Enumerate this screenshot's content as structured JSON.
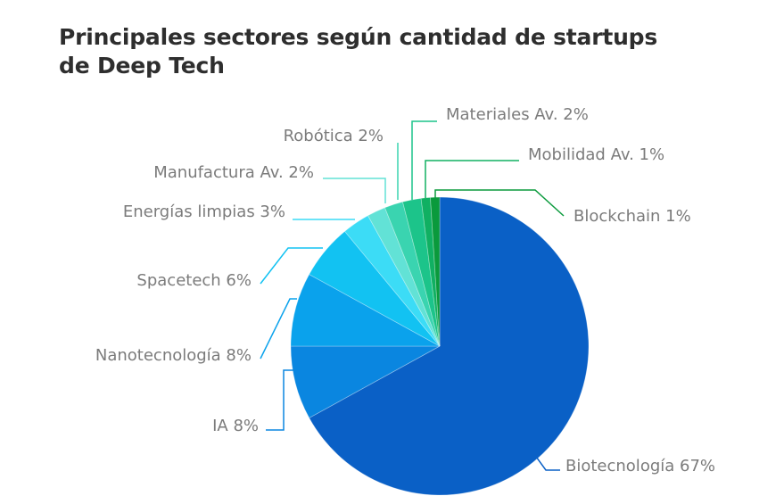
{
  "chart_data": {
    "type": "pie",
    "title_lines": [
      "Principales sectores según cantidad de startups",
      "de Deep Tech"
    ],
    "start": "top",
    "direction": "clockwise",
    "slices": [
      {
        "label": "Biotecnología",
        "value": 67,
        "text": "Biotecnología 67%",
        "color": "#0a60c6"
      },
      {
        "label": "IA",
        "value": 8,
        "text": "IA 8%",
        "color": "#0a86e0"
      },
      {
        "label": "Nanotecnología",
        "value": 8,
        "text": "Nanotecnología 8%",
        "color": "#0aa2ec"
      },
      {
        "label": "Spacetech",
        "value": 6,
        "text": "Spacetech 6%",
        "color": "#12c2f2"
      },
      {
        "label": "Energías limpias",
        "value": 3,
        "text": "Energías limpias 3%",
        "color": "#3cdcf6"
      },
      {
        "label": "Manufactura Av.",
        "value": 2,
        "text": "Manufactura Av. 2%",
        "color": "#62e2d6"
      },
      {
        "label": "Robótica",
        "value": 2,
        "text": "Robótica 2%",
        "color": "#3ad4b0"
      },
      {
        "label": "Materiales Av.",
        "value": 2,
        "text": "Materiales Av. 2%",
        "color": "#1cc48a"
      },
      {
        "label": "Mobilidad Av.",
        "value": 1,
        "text": "Mobilidad Av. 1%",
        "color": "#10b062"
      },
      {
        "label": "Blockchain",
        "value": 1,
        "text": "Blockchain 1%",
        "color": "#0a9a3c"
      }
    ]
  }
}
